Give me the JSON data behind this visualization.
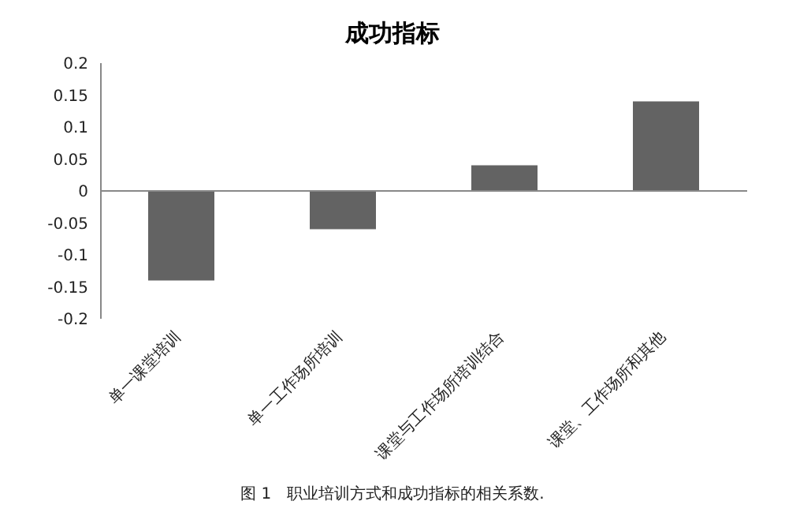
{
  "chart_data": {
    "type": "bar",
    "title": "成功指标",
    "categories": [
      "单一课堂培训",
      "单一工作场所培训",
      "课堂与工作场所培训结合",
      "课堂、工作场所和其他"
    ],
    "values": [
      -0.14,
      -0.06,
      0.04,
      0.14
    ],
    "color": "#636363",
    "ylim": [
      -0.2,
      0.2
    ],
    "yticks": [
      -0.2,
      -0.15,
      -0.1,
      -0.05,
      0,
      0.05,
      0.1,
      0.15,
      0.2
    ],
    "legend": false,
    "annotations": [
      "图 1　职业培训方式和成功指标的相关系数."
    ]
  }
}
